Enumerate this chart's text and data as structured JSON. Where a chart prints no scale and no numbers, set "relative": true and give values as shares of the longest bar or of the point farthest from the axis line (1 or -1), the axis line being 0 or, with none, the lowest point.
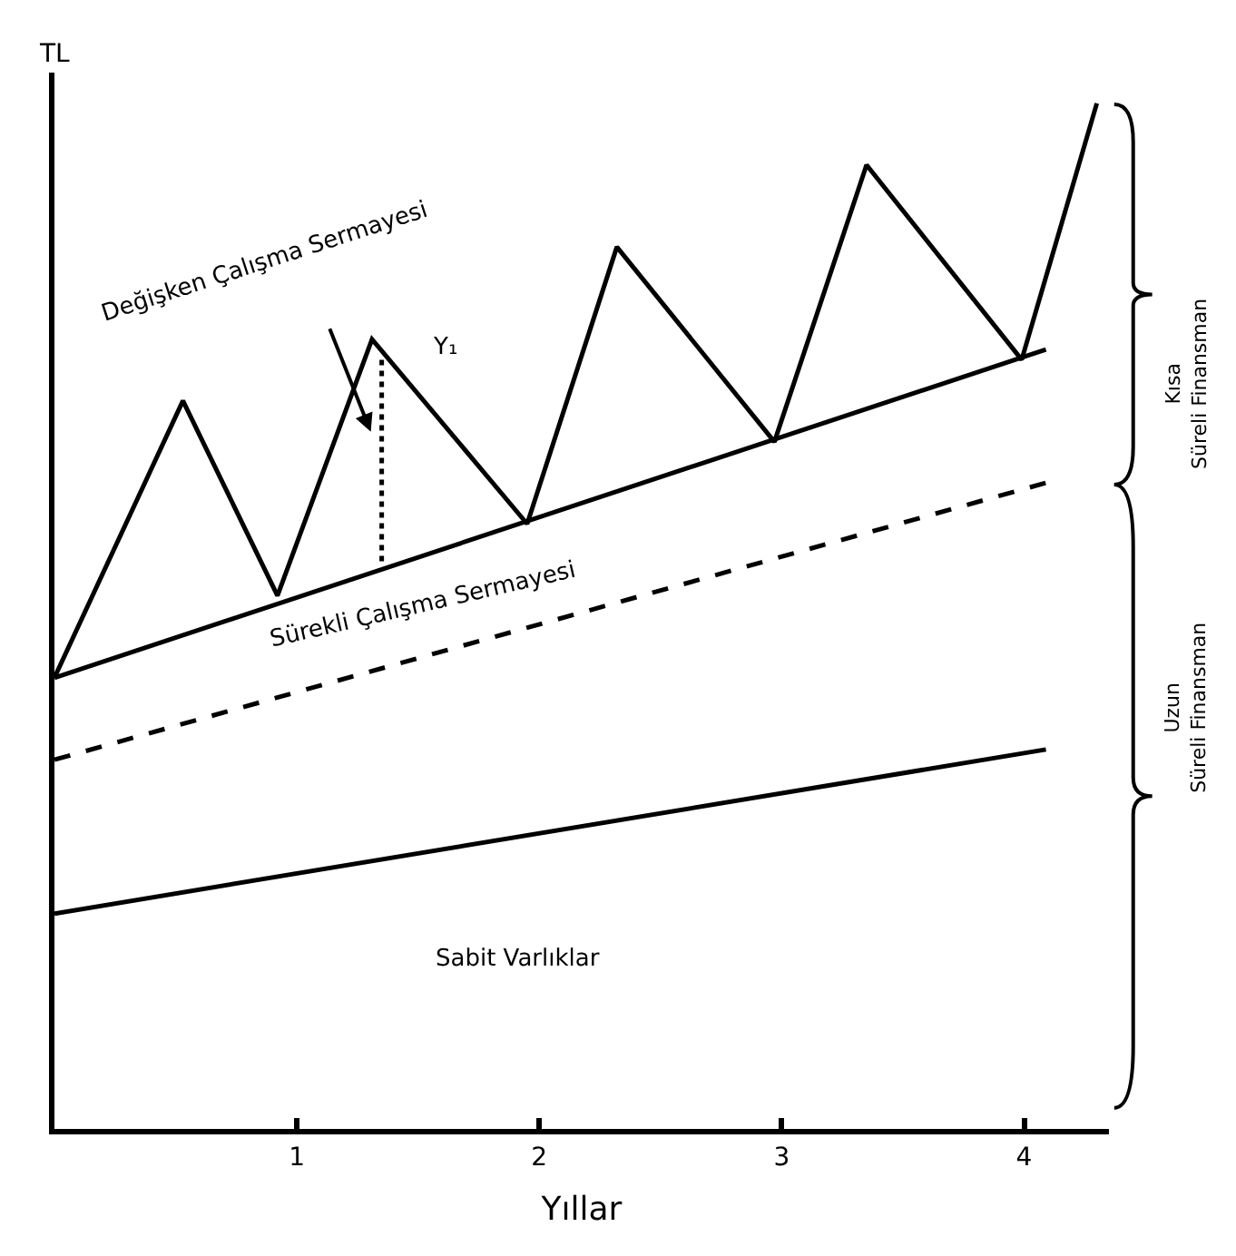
{
  "chart_data": {
    "type": "line",
    "relative": true,
    "xlabel": "Yıllar",
    "ylabel": "TL",
    "xlim": [
      0,
      4.35
    ],
    "xticks": [
      1,
      2,
      3,
      4
    ],
    "series": [
      {
        "color": "#000000",
        "line_style": "solid",
        "x": [
          0,
          0.53,
          0.92,
          1.31,
          1.95,
          2.32,
          2.97,
          3.35,
          3.99,
          4.3
        ],
        "values": [
          0.44,
          0.71,
          0.52,
          0.77,
          0.59,
          0.86,
          0.67,
          0.94,
          0.75,
          1.0
        ]
      },
      {
        "color": "#000000",
        "line_style": "solid",
        "x": [
          0,
          4.09
        ],
        "values": [
          0.44,
          0.76
        ]
      },
      {
        "color": "#000000",
        "line_style": "dashed",
        "x": [
          0,
          4.09
        ],
        "values": [
          0.36,
          0.63
        ]
      },
      {
        "color": "#000000",
        "line_style": "solid",
        "x": [
          0,
          4.09
        ],
        "values": [
          0.21,
          0.37
        ]
      },
      {
        "color": "#000000",
        "line_style": "dotted",
        "x": [
          1.35,
          1.35
        ],
        "values": [
          0.75,
          0.55
        ]
      }
    ],
    "annotations": [
      "Değişken Çalışma Sermayesi",
      "Y₁",
      "Sürekli Çalışma Sermayesi",
      "Sabit Varlıklar",
      "Kısa Süreli Finansman",
      "Uzun Süreli Finansman"
    ]
  }
}
